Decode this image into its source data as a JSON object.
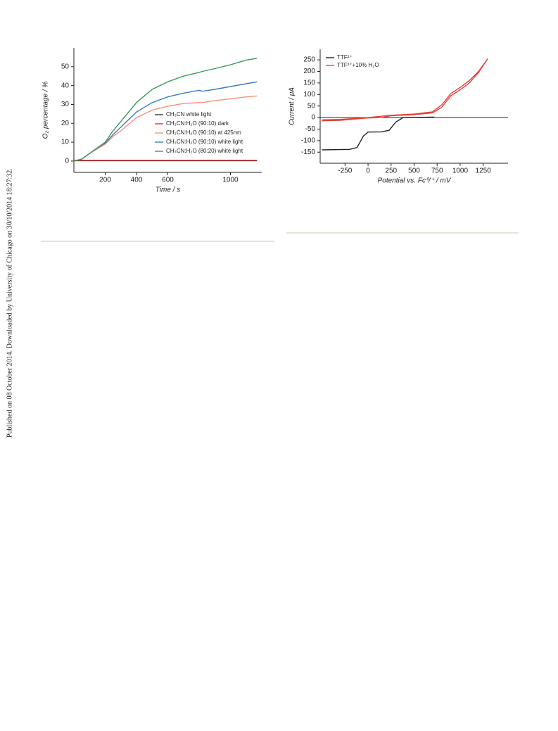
{
  "margin_note": "Published on 08 October 2014. Downloaded by University of Chicago on 30/10/2014 18:27:32.",
  "chart_data": [
    {
      "type": "line",
      "xlabel": "Time / s",
      "ylabel": "O₂ percentage / %",
      "x": [
        0,
        50,
        100,
        150,
        200,
        250,
        300,
        400,
        500,
        600,
        700,
        800,
        820,
        900,
        1000,
        1100,
        1170
      ],
      "xlim": [
        0,
        1200
      ],
      "xticks": [
        200,
        400,
        600,
        1000
      ],
      "ylim": [
        -6,
        60
      ],
      "yticks": [
        0,
        10,
        20,
        30,
        40,
        50
      ],
      "legend": "lower right",
      "series": [
        {
          "name": "CH₃CN white light",
          "color": "#333333",
          "values": [
            0.2,
            0.2,
            0.2,
            0.2,
            0.2,
            0.2,
            0.2,
            0.2,
            0.2,
            0.2,
            0.2,
            0.2,
            0.2,
            0.2,
            0.2,
            0.2,
            0.2
          ]
        },
        {
          "name": "CH₃CN:H₂O (90:10) dark",
          "color": "#e8302a",
          "values": [
            0.4,
            0.4,
            0.4,
            0.4,
            0.4,
            0.4,
            0.4,
            0.4,
            0.4,
            0.4,
            0.4,
            0.4,
            0.4,
            0.4,
            0.4,
            0.4,
            0.4
          ]
        },
        {
          "name": "CH₃CN:H₂O (90:10) at 425nm",
          "color": "#f4907a",
          "values": [
            0,
            1,
            4,
            6.5,
            9,
            13,
            16,
            23,
            27,
            29,
            30.5,
            31,
            31,
            32,
            33,
            34,
            34.5
          ]
        },
        {
          "name": "CH₃CN:H₂O (90:10) white light",
          "color": "#3a7dc9",
          "values": [
            0,
            1,
            4,
            7,
            9.5,
            14,
            18,
            26,
            31,
            34,
            36,
            37.5,
            37,
            38,
            39.5,
            41,
            42
          ]
        },
        {
          "name": "CH₃CN:H₂O (80:20) white light",
          "color": "#3a9a5a",
          "values": [
            0,
            1,
            4,
            7,
            10,
            16,
            21,
            31,
            38,
            42,
            45,
            47,
            47.5,
            49,
            51,
            53.5,
            54.5
          ]
        }
      ]
    },
    {
      "type": "line",
      "xlabel": "Potential vs. Fc⁰/⁺ / mV",
      "ylabel": "Current / μA",
      "xlim": [
        -520,
        1520
      ],
      "xticks": [
        -250,
        0,
        250,
        500,
        750,
        1000,
        1250
      ],
      "ylim": [
        -198,
        296
      ],
      "yticks": [
        -150,
        -100,
        -50,
        0,
        50,
        100,
        150,
        200,
        250
      ],
      "legend": "upper left",
      "zero_line": true,
      "series": [
        {
          "name": "TTF²⁺",
          "color": "#222222",
          "x": [
            -500,
            -200,
            -120,
            -50,
            0,
            150,
            230,
            300,
            380,
            720
          ],
          "values": [
            -140,
            -138,
            -130,
            -80,
            -63,
            -62,
            -55,
            -20,
            0,
            2
          ]
        },
        {
          "name": "TTF²⁺+10% H₂O",
          "color": "#e8403a",
          "x": [
            -500,
            -300,
            -100,
            0,
            150,
            250,
            500,
            700,
            800,
            900,
            1000,
            1100,
            1200,
            1300,
            1200,
            1100,
            1000,
            900,
            800,
            700,
            500,
            250,
            0,
            -300,
            -500
          ],
          "values": [
            -14,
            -12,
            -5,
            -2,
            0,
            8,
            12,
            20,
            45,
            95,
            120,
            150,
            195,
            255,
            200,
            160,
            130,
            105,
            55,
            25,
            15,
            10,
            0,
            -8,
            -10
          ]
        }
      ]
    }
  ]
}
